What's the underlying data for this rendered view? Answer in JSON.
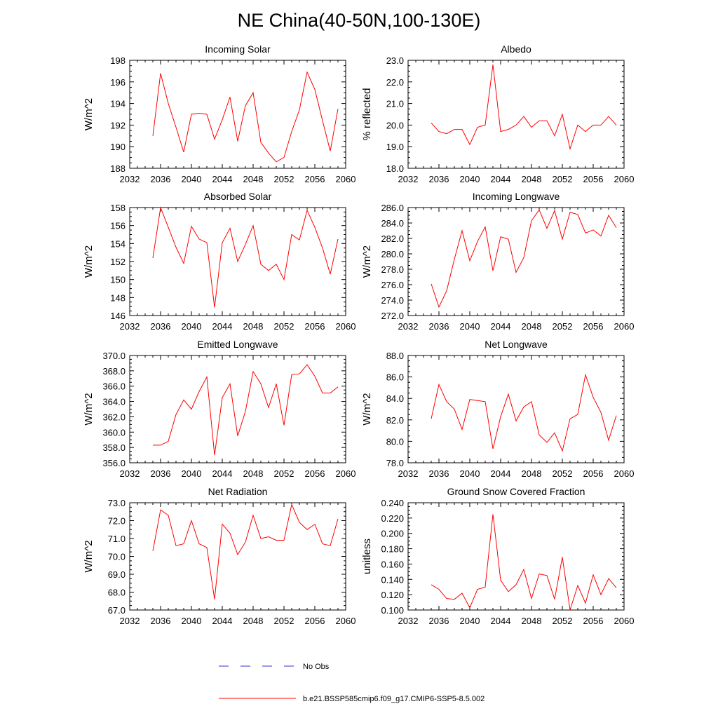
{
  "title": "NE China(40-50N,100-130E)",
  "legend": {
    "placement": "bottom",
    "entries": [
      {
        "label": "No Obs",
        "color": "#3333cc",
        "style": "dashed"
      },
      {
        "label": "b.e21.BSSP585cmip6.f09_g17.CMIP6-SSP5-8.5.002",
        "color": "#ff0000",
        "style": "solid"
      }
    ]
  },
  "chart_data": [
    {
      "type": "line",
      "title": "Incoming Solar",
      "ylabel": "W/m^2",
      "xlim": [
        2032,
        2060
      ],
      "ylim": [
        188,
        198
      ],
      "xticks": [
        "2032",
        "2036",
        "2040",
        "2044",
        "2048",
        "2052",
        "2056",
        "2060"
      ],
      "yticks": [
        "188",
        "190",
        "192",
        "194",
        "196",
        "198"
      ],
      "x": [
        2035,
        2036,
        2037,
        2038,
        2039,
        2040,
        2041,
        2042,
        2043,
        2044,
        2045,
        2046,
        2047,
        2048,
        2049,
        2050,
        2051,
        2052,
        2053,
        2054,
        2055,
        2056,
        2057,
        2058,
        2059
      ],
      "series": [
        {
          "values": [
            191.0,
            196.8,
            194.0,
            191.8,
            189.5,
            193.0,
            193.1,
            193.0,
            190.7,
            192.5,
            194.6,
            190.5,
            193.8,
            195.0,
            190.4,
            189.4,
            188.6,
            189.0,
            191.4,
            193.4,
            196.9,
            195.3,
            192.4,
            189.6,
            193.5
          ]
        }
      ]
    },
    {
      "type": "line",
      "title": "Albedo",
      "ylabel": "% reflected",
      "xlim": [
        2032,
        2060
      ],
      "ylim": [
        18.0,
        23.0
      ],
      "xticks": [
        "2032",
        "2036",
        "2040",
        "2044",
        "2048",
        "2052",
        "2056",
        "2060"
      ],
      "yticks": [
        "18.0",
        "19.0",
        "20.0",
        "21.0",
        "22.0",
        "23.0"
      ],
      "x": [
        2035,
        2036,
        2037,
        2038,
        2039,
        2040,
        2041,
        2042,
        2043,
        2044,
        2045,
        2046,
        2047,
        2048,
        2049,
        2050,
        2051,
        2052,
        2053,
        2054,
        2055,
        2056,
        2057,
        2058,
        2059
      ],
      "series": [
        {
          "values": [
            20.1,
            19.7,
            19.6,
            19.8,
            19.8,
            19.1,
            19.9,
            20.0,
            22.8,
            19.7,
            19.8,
            20.0,
            20.4,
            19.9,
            20.2,
            20.2,
            19.5,
            20.5,
            18.9,
            20.0,
            19.7,
            20.0,
            20.0,
            20.4,
            20.0
          ]
        }
      ]
    },
    {
      "type": "line",
      "title": "Absorbed Solar",
      "ylabel": "W/m^2",
      "xlim": [
        2032,
        2060
      ],
      "ylim": [
        146,
        158
      ],
      "xticks": [
        "2032",
        "2036",
        "2040",
        "2044",
        "2048",
        "2052",
        "2056",
        "2060"
      ],
      "yticks": [
        "146",
        "148",
        "150",
        "152",
        "154",
        "156",
        "158"
      ],
      "x": [
        2035,
        2036,
        2037,
        2038,
        2039,
        2040,
        2041,
        2042,
        2043,
        2044,
        2045,
        2046,
        2047,
        2048,
        2049,
        2050,
        2051,
        2052,
        2053,
        2054,
        2055,
        2056,
        2057,
        2058,
        2059
      ],
      "series": [
        {
          "values": [
            152.4,
            158.0,
            155.8,
            153.6,
            151.8,
            155.9,
            154.5,
            154.1,
            146.9,
            154.1,
            155.7,
            152.0,
            153.9,
            156.0,
            151.7,
            151.0,
            151.7,
            150.0,
            155.0,
            154.4,
            157.7,
            155.8,
            153.5,
            150.6,
            154.5
          ]
        }
      ]
    },
    {
      "type": "line",
      "title": "Incoming Longwave",
      "ylabel": "W/m^2",
      "xlim": [
        2032,
        2060
      ],
      "ylim": [
        272.0,
        286.0
      ],
      "xticks": [
        "2032",
        "2036",
        "2040",
        "2044",
        "2048",
        "2052",
        "2056",
        "2060"
      ],
      "yticks": [
        "272.0",
        "274.0",
        "276.0",
        "278.0",
        "280.0",
        "282.0",
        "284.0",
        "286.0"
      ],
      "x": [
        2035,
        2036,
        2037,
        2038,
        2039,
        2040,
        2041,
        2042,
        2043,
        2044,
        2045,
        2046,
        2047,
        2048,
        2049,
        2050,
        2051,
        2052,
        2053,
        2054,
        2055,
        2056,
        2057,
        2058,
        2059
      ],
      "series": [
        {
          "values": [
            276.1,
            273.1,
            275.2,
            279.3,
            283.0,
            279.1,
            281.6,
            283.5,
            277.8,
            282.2,
            281.9,
            277.6,
            279.5,
            284.3,
            285.7,
            283.3,
            285.6,
            281.9,
            285.4,
            285.1,
            282.7,
            283.1,
            282.3,
            285.0,
            283.4
          ]
        }
      ]
    },
    {
      "type": "line",
      "title": "Emitted Longwave",
      "ylabel": "W/m^2",
      "xlim": [
        2032,
        2060
      ],
      "ylim": [
        356.0,
        370.0
      ],
      "xticks": [
        "2032",
        "2036",
        "2040",
        "2044",
        "2048",
        "2052",
        "2056",
        "2060"
      ],
      "yticks": [
        "356.0",
        "358.0",
        "360.0",
        "362.0",
        "364.0",
        "366.0",
        "368.0",
        "370.0"
      ],
      "x": [
        2035,
        2036,
        2037,
        2038,
        2039,
        2040,
        2041,
        2042,
        2043,
        2044,
        2045,
        2046,
        2047,
        2048,
        2049,
        2050,
        2051,
        2052,
        2053,
        2054,
        2055,
        2056,
        2057,
        2058,
        2059
      ],
      "series": [
        {
          "values": [
            358.3,
            358.3,
            358.8,
            362.3,
            364.2,
            363.0,
            365.3,
            367.2,
            357.0,
            364.5,
            366.3,
            359.5,
            362.7,
            367.9,
            366.3,
            363.2,
            366.3,
            360.9,
            367.5,
            367.6,
            368.8,
            367.3,
            365.1,
            365.1,
            365.9
          ]
        }
      ]
    },
    {
      "type": "line",
      "title": "Net Longwave",
      "ylabel": "W/m^2",
      "xlim": [
        2032,
        2060
      ],
      "ylim": [
        78.0,
        88.0
      ],
      "xticks": [
        "2032",
        "2036",
        "2040",
        "2044",
        "2048",
        "2052",
        "2056",
        "2060"
      ],
      "yticks": [
        "78.0",
        "80.0",
        "82.0",
        "84.0",
        "86.0",
        "88.0"
      ],
      "x": [
        2035,
        2036,
        2037,
        2038,
        2039,
        2040,
        2041,
        2042,
        2043,
        2044,
        2045,
        2046,
        2047,
        2048,
        2049,
        2050,
        2051,
        2052,
        2053,
        2054,
        2055,
        2056,
        2057,
        2058,
        2059
      ],
      "series": [
        {
          "values": [
            82.1,
            85.3,
            83.7,
            83.0,
            81.1,
            83.9,
            83.8,
            83.7,
            79.3,
            82.3,
            84.4,
            81.9,
            83.2,
            83.7,
            80.6,
            79.9,
            80.8,
            79.1,
            82.1,
            82.5,
            86.2,
            84.1,
            82.7,
            80.1,
            82.4
          ]
        }
      ]
    },
    {
      "type": "line",
      "title": "Net Radiation",
      "ylabel": "W/m^2",
      "xlim": [
        2032,
        2060
      ],
      "ylim": [
        67.0,
        73.0
      ],
      "xticks": [
        "2032",
        "2036",
        "2040",
        "2044",
        "2048",
        "2052",
        "2056",
        "2060"
      ],
      "yticks": [
        "67.0",
        "68.0",
        "69.0",
        "70.0",
        "71.0",
        "72.0",
        "73.0"
      ],
      "x": [
        2035,
        2036,
        2037,
        2038,
        2039,
        2040,
        2041,
        2042,
        2043,
        2044,
        2045,
        2046,
        2047,
        2048,
        2049,
        2050,
        2051,
        2052,
        2053,
        2054,
        2055,
        2056,
        2057,
        2058,
        2059
      ],
      "series": [
        {
          "values": [
            70.3,
            72.6,
            72.3,
            70.6,
            70.7,
            72.0,
            70.7,
            70.5,
            67.6,
            71.8,
            71.3,
            70.1,
            70.8,
            72.3,
            71.0,
            71.1,
            70.9,
            70.9,
            72.9,
            71.9,
            71.5,
            71.8,
            70.7,
            70.6,
            72.1
          ]
        }
      ]
    },
    {
      "type": "line",
      "title": "Ground Snow Covered Fraction",
      "ylabel": "unitless",
      "xlim": [
        2032,
        2060
      ],
      "ylim": [
        0.1,
        0.24
      ],
      "xticks": [
        "2032",
        "2036",
        "2040",
        "2044",
        "2048",
        "2052",
        "2056",
        "2060"
      ],
      "yticks": [
        "0.100",
        "0.120",
        "0.140",
        "0.160",
        "0.180",
        "0.200",
        "0.220",
        "0.240"
      ],
      "x": [
        2035,
        2036,
        2037,
        2038,
        2039,
        2040,
        2041,
        2042,
        2043,
        2044,
        2045,
        2046,
        2047,
        2048,
        2049,
        2050,
        2051,
        2052,
        2053,
        2054,
        2055,
        2056,
        2057,
        2058,
        2059
      ],
      "series": [
        {
          "values": [
            0.133,
            0.127,
            0.115,
            0.114,
            0.122,
            0.103,
            0.127,
            0.13,
            0.225,
            0.139,
            0.124,
            0.133,
            0.153,
            0.115,
            0.147,
            0.145,
            0.114,
            0.169,
            0.1,
            0.132,
            0.109,
            0.146,
            0.12,
            0.141,
            0.129
          ]
        }
      ]
    }
  ]
}
